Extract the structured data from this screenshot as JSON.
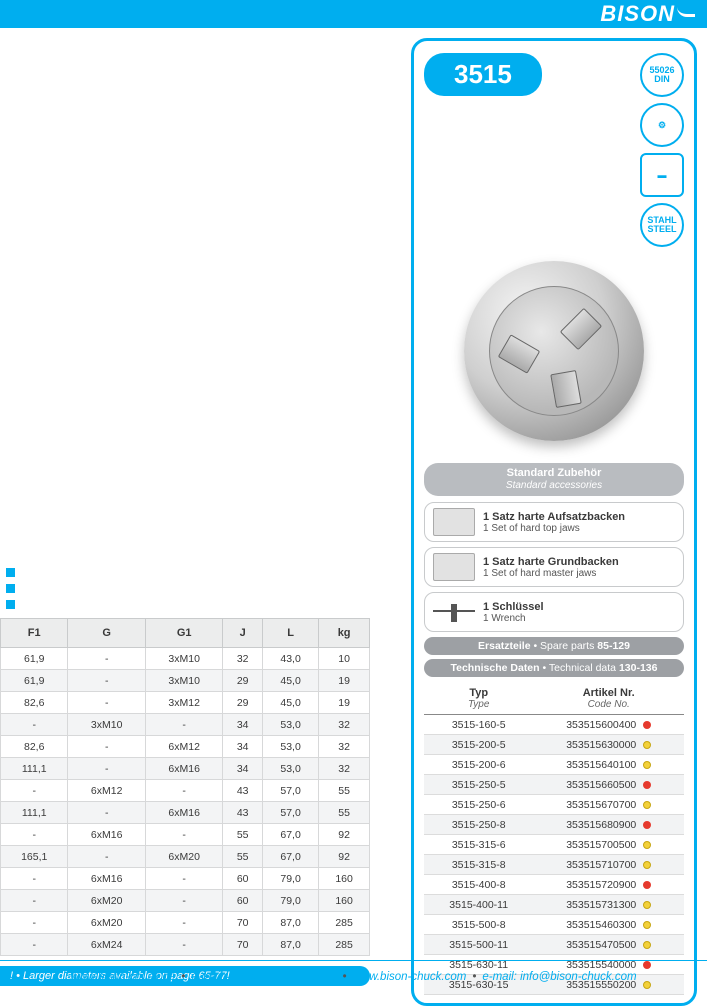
{
  "brand": "BISON",
  "model": "3515",
  "certifications": [
    {
      "label": "55026\nDIN",
      "shape": "round"
    },
    {
      "label": "⚙",
      "shape": "round"
    },
    {
      "label": "▬",
      "shape": "square"
    },
    {
      "label": "STAHL\nSTEEL",
      "shape": "round"
    }
  ],
  "accessories_header": {
    "de": "Standard Zubehör",
    "en": "Standard accessories"
  },
  "accessories": [
    {
      "de": "1 Satz harte Aufsatzbacken",
      "en": "1 Set of hard top jaws",
      "icon": "jaws1"
    },
    {
      "de": "1 Satz harte Grundbacken",
      "en": "1 Set of hard master jaws",
      "icon": "jaws2"
    },
    {
      "de": "1 Schlüssel",
      "en": "1 Wrench",
      "icon": "wrench"
    }
  ],
  "pills": [
    {
      "left": "Ersatzteile",
      "right": "Spare parts",
      "pages": "85-129"
    },
    {
      "left": "Technische Daten",
      "right": "Technical data",
      "pages": "130-136"
    }
  ],
  "type_table": {
    "headers": {
      "type_de": "Typ",
      "type_en": "Type",
      "code_de": "Artikel Nr.",
      "code_en": "Code No."
    },
    "rows": [
      {
        "type": "3515-160-5",
        "code": "353515600400",
        "dot": "red"
      },
      {
        "type": "3515-200-5",
        "code": "353515630000",
        "dot": "yellow"
      },
      {
        "type": "3515-200-6",
        "code": "353515640100",
        "dot": "yellow"
      },
      {
        "type": "3515-250-5",
        "code": "353515660500",
        "dot": "red"
      },
      {
        "type": "3515-250-6",
        "code": "353515670700",
        "dot": "yellow"
      },
      {
        "type": "3515-250-8",
        "code": "353515680900",
        "dot": "red"
      },
      {
        "type": "3515-315-6",
        "code": "353515700500",
        "dot": "yellow"
      },
      {
        "type": "3515-315-8",
        "code": "353515710700",
        "dot": "yellow"
      },
      {
        "type": "3515-400-8",
        "code": "353515720900",
        "dot": "red"
      },
      {
        "type": "3515-400-11",
        "code": "353515731300",
        "dot": "yellow"
      },
      {
        "type": "3515-500-8",
        "code": "353515460300",
        "dot": "yellow"
      },
      {
        "type": "3515-500-11",
        "code": "353515470500",
        "dot": "yellow"
      },
      {
        "type": "3515-630-11",
        "code": "353515540000",
        "dot": "red"
      },
      {
        "type": "3515-630-15",
        "code": "353515550200",
        "dot": "yellow"
      }
    ]
  },
  "spec_table": {
    "headers": [
      "F1",
      "G",
      "G1",
      "J",
      "L",
      "kg"
    ],
    "rows": [
      [
        "61,9",
        "-",
        "3xM10",
        "32",
        "43,0",
        "10"
      ],
      [
        "61,9",
        "-",
        "3xM10",
        "29",
        "45,0",
        "19"
      ],
      [
        "82,6",
        "-",
        "3xM12",
        "29",
        "45,0",
        "19"
      ],
      [
        "-",
        "3xM10",
        "-",
        "34",
        "53,0",
        "32"
      ],
      [
        "82,6",
        "-",
        "6xM12",
        "34",
        "53,0",
        "32"
      ],
      [
        "111,1",
        "-",
        "6xM16",
        "34",
        "53,0",
        "32"
      ],
      [
        "-",
        "6xM12",
        "-",
        "43",
        "57,0",
        "55"
      ],
      [
        "111,1",
        "-",
        "6xM16",
        "43",
        "57,0",
        "55"
      ],
      [
        "-",
        "6xM16",
        "-",
        "55",
        "67,0",
        "92"
      ],
      [
        "165,1",
        "-",
        "6xM20",
        "55",
        "67,0",
        "92"
      ],
      [
        "-",
        "6xM16",
        "-",
        "60",
        "79,0",
        "160"
      ],
      [
        "-",
        "6xM20",
        "-",
        "60",
        "79,0",
        "160"
      ],
      [
        "-",
        "6xM20",
        "-",
        "70",
        "87,0",
        "285"
      ],
      [
        "-",
        "6xM24",
        "-",
        "70",
        "87,0",
        "285"
      ]
    ]
  },
  "note": "! • Larger diameters available on page 65-77!",
  "footer": {
    "parts": [
      "www.bison-chuck.de",
      "e-mail: info@bison-chuck.de",
      "www.bison-chuck.com",
      "e-mail: info@bison-chuck.com"
    ]
  }
}
